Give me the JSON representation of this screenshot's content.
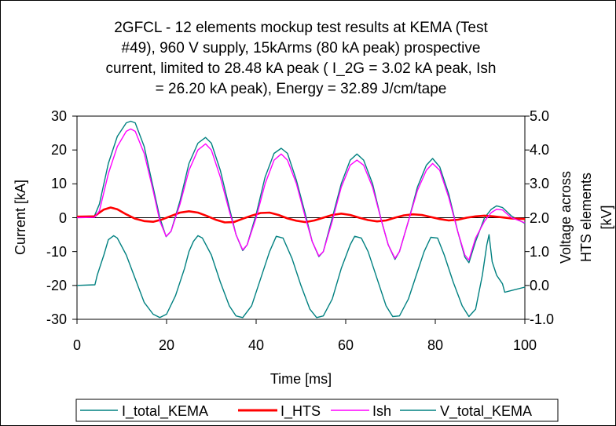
{
  "chart_data": {
    "type": "line",
    "title_lines": [
      "2GFCL - 12 elements mockup test results at KEMA (Test",
      "#49), 960 V supply, 15kArms (80 kA peak) prospective",
      "current, limited to 28.48 kA peak ( I_2G = 3.02 kA peak, Ish",
      "= 26.20 kA peak), Energy = 32.89 J/cm/tape"
    ],
    "xlabel": "Time [ms]",
    "ylabel": "Current [kA]",
    "y2label_lines": [
      "Voltage across",
      "HTS elements",
      "[kV]"
    ],
    "xlim": [
      0,
      100
    ],
    "ylim": [
      -30,
      30
    ],
    "y2lim": [
      -1.0,
      5.0
    ],
    "x_ticks": [
      "0",
      "20",
      "40",
      "60",
      "80",
      "100"
    ],
    "y_ticks": [
      "30",
      "20",
      "10",
      "0",
      "-10",
      "-20",
      "-30"
    ],
    "y2_ticks": [
      "5.0",
      "4.0",
      "3.0",
      "2.0",
      "1.0",
      "0.0",
      "-1.0"
    ],
    "grid": false,
    "legend_position": "bottom",
    "series": [
      {
        "name": "I_total_KEMA",
        "color": "#008080",
        "axis": "left",
        "points": [
          [
            0,
            0.3
          ],
          [
            3.9,
            0.5
          ],
          [
            5,
            4
          ],
          [
            7,
            16
          ],
          [
            9,
            24
          ],
          [
            11,
            28
          ],
          [
            12,
            28.5
          ],
          [
            13,
            28
          ],
          [
            15,
            21
          ],
          [
            17,
            9
          ],
          [
            18.5,
            0
          ],
          [
            19.9,
            -5.6
          ],
          [
            21,
            -4
          ],
          [
            23,
            5
          ],
          [
            25,
            16
          ],
          [
            27,
            22
          ],
          [
            28.7,
            23.7
          ],
          [
            30,
            22
          ],
          [
            32,
            14
          ],
          [
            34,
            3
          ],
          [
            35.5,
            -5
          ],
          [
            37,
            -9.7
          ],
          [
            38,
            -8
          ],
          [
            40,
            1
          ],
          [
            42,
            12
          ],
          [
            44,
            19
          ],
          [
            45.6,
            20.5
          ],
          [
            47,
            19
          ],
          [
            49,
            11
          ],
          [
            51,
            1
          ],
          [
            52.5,
            -7
          ],
          [
            54,
            -11.5
          ],
          [
            55,
            -10
          ],
          [
            57,
            0
          ],
          [
            59,
            10
          ],
          [
            61,
            17
          ],
          [
            62.5,
            18.8
          ],
          [
            64,
            17
          ],
          [
            66,
            10
          ],
          [
            68,
            -1
          ],
          [
            69.5,
            -8
          ],
          [
            71,
            -12.3
          ],
          [
            72,
            -10
          ],
          [
            74,
            -1
          ],
          [
            76,
            9
          ],
          [
            78,
            15.5
          ],
          [
            79.4,
            17.5
          ],
          [
            81,
            15
          ],
          [
            83,
            7
          ],
          [
            85,
            -4
          ],
          [
            86.6,
            -11.6
          ],
          [
            87.5,
            -13.3
          ],
          [
            89,
            -7
          ],
          [
            91,
            0
          ],
          [
            92.5,
            2.5
          ],
          [
            93.7,
            3.5
          ],
          [
            95,
            3
          ],
          [
            97,
            0.5
          ],
          [
            100,
            -1.7
          ]
        ]
      },
      {
        "name": "I_HTS",
        "color": "#ff0000",
        "axis": "left",
        "points": [
          [
            0,
            0.3
          ],
          [
            3.9,
            0.4
          ],
          [
            5,
            1.5
          ],
          [
            6,
            2.4
          ],
          [
            7.5,
            3
          ],
          [
            9,
            2.5
          ],
          [
            11,
            1
          ],
          [
            13,
            -0.3
          ],
          [
            15,
            -1
          ],
          [
            17,
            -1.2
          ],
          [
            19,
            -0.5
          ],
          [
            21,
            0.5
          ],
          [
            23,
            1.5
          ],
          [
            25,
            1.9
          ],
          [
            27,
            1.5
          ],
          [
            29,
            0.5
          ],
          [
            31,
            -0.6
          ],
          [
            33,
            -1.4
          ],
          [
            35,
            -1.3
          ],
          [
            37,
            -0.3
          ],
          [
            39,
            0.6
          ],
          [
            41,
            1.4
          ],
          [
            43,
            1.5
          ],
          [
            45,
            0.8
          ],
          [
            47,
            -0.2
          ],
          [
            49,
            -0.9
          ],
          [
            51,
            -1.3
          ],
          [
            53,
            -0.8
          ],
          [
            55,
            0
          ],
          [
            57,
            0.8
          ],
          [
            59,
            1.2
          ],
          [
            61,
            0.8
          ],
          [
            63,
            0
          ],
          [
            65,
            -0.7
          ],
          [
            67,
            -1.1
          ],
          [
            69,
            -0.8
          ],
          [
            71,
            0
          ],
          [
            73,
            0.7
          ],
          [
            75,
            1
          ],
          [
            77,
            0.8
          ],
          [
            79,
            0.2
          ],
          [
            81,
            -0.4
          ],
          [
            83,
            -0.8
          ],
          [
            85,
            -0.6
          ],
          [
            87,
            0
          ],
          [
            89,
            0.4
          ],
          [
            91,
            0.6
          ],
          [
            93,
            0.4
          ],
          [
            95,
            0.1
          ],
          [
            97,
            -0.2
          ],
          [
            100,
            -0.4
          ]
        ]
      },
      {
        "name": "Ish",
        "color": "#ff00ff",
        "axis": "left",
        "points": [
          [
            0,
            0
          ],
          [
            3.9,
            0.1
          ],
          [
            5,
            2
          ],
          [
            7,
            13
          ],
          [
            9,
            21
          ],
          [
            11,
            25.5
          ],
          [
            12,
            26.2
          ],
          [
            13,
            25.5
          ],
          [
            15,
            19
          ],
          [
            17,
            8
          ],
          [
            18.5,
            -1
          ],
          [
            19.9,
            -5.5
          ],
          [
            21,
            -4
          ],
          [
            23,
            4
          ],
          [
            25,
            14
          ],
          [
            27,
            20
          ],
          [
            28.7,
            21.8
          ],
          [
            30,
            20
          ],
          [
            32,
            12
          ],
          [
            34,
            2
          ],
          [
            35.5,
            -5
          ],
          [
            37,
            -9.5
          ],
          [
            38,
            -8
          ],
          [
            40,
            0
          ],
          [
            42,
            10
          ],
          [
            44,
            17
          ],
          [
            45.6,
            18.8
          ],
          [
            47,
            17
          ],
          [
            49,
            10
          ],
          [
            51,
            0
          ],
          [
            52.5,
            -7
          ],
          [
            54,
            -11.3
          ],
          [
            55,
            -10
          ],
          [
            57,
            -1
          ],
          [
            59,
            9
          ],
          [
            61,
            15.5
          ],
          [
            62.5,
            17
          ],
          [
            64,
            15.5
          ],
          [
            66,
            9
          ],
          [
            68,
            -1
          ],
          [
            69.5,
            -8
          ],
          [
            71,
            -12
          ],
          [
            72,
            -10
          ],
          [
            74,
            -1
          ],
          [
            76,
            8
          ],
          [
            78,
            14
          ],
          [
            79.4,
            16
          ],
          [
            81,
            14
          ],
          [
            83,
            6
          ],
          [
            85,
            -4
          ],
          [
            86.6,
            -11
          ],
          [
            87.5,
            -12.5
          ],
          [
            89,
            -6
          ],
          [
            91,
            -1
          ],
          [
            92.5,
            1.5
          ],
          [
            93.7,
            2.5
          ],
          [
            95,
            2.3
          ],
          [
            97,
            0
          ],
          [
            100,
            -1.5
          ]
        ]
      },
      {
        "name": "V_total_KEMA",
        "color": "#008080",
        "axis": "right",
        "points": [
          [
            0,
            0
          ],
          [
            4,
            0.02
          ],
          [
            4.5,
            0.3
          ],
          [
            5,
            0.5
          ],
          [
            6,
            0.9
          ],
          [
            7,
            1.35
          ],
          [
            8.2,
            1.47
          ],
          [
            9,
            1.4
          ],
          [
            11,
            0.9
          ],
          [
            13,
            0.2
          ],
          [
            15,
            -0.5
          ],
          [
            17,
            -0.85
          ],
          [
            18.5,
            -0.95
          ],
          [
            20,
            -0.85
          ],
          [
            22,
            -0.3
          ],
          [
            24,
            0.5
          ],
          [
            25,
            1.0
          ],
          [
            26,
            1.3
          ],
          [
            27,
            1.47
          ],
          [
            28,
            1.4
          ],
          [
            30,
            0.9
          ],
          [
            32,
            0.1
          ],
          [
            34,
            -0.6
          ],
          [
            35.5,
            -0.9
          ],
          [
            37,
            -0.95
          ],
          [
            39,
            -0.6
          ],
          [
            41,
            0.2
          ],
          [
            43,
            1.0
          ],
          [
            44.5,
            1.45
          ],
          [
            46,
            1.4
          ],
          [
            48,
            0.8
          ],
          [
            50,
            0
          ],
          [
            52,
            -0.7
          ],
          [
            53.5,
            -0.95
          ],
          [
            55,
            -0.9
          ],
          [
            57,
            -0.4
          ],
          [
            59,
            0.5
          ],
          [
            61,
            1.2
          ],
          [
            62,
            1.45
          ],
          [
            63.5,
            1.4
          ],
          [
            65,
            1.0
          ],
          [
            67,
            0.2
          ],
          [
            69,
            -0.6
          ],
          [
            70.5,
            -0.92
          ],
          [
            72,
            -0.9
          ],
          [
            74,
            -0.4
          ],
          [
            76,
            0.4
          ],
          [
            77.5,
            1.0
          ],
          [
            79,
            1.42
          ],
          [
            80.5,
            1.4
          ],
          [
            82,
            0.9
          ],
          [
            84,
            0.1
          ],
          [
            86,
            -0.6
          ],
          [
            87.5,
            -0.92
          ],
          [
            89,
            -0.7
          ],
          [
            90.5,
            0.3
          ],
          [
            91.5,
            1.2
          ],
          [
            92,
            1.5
          ],
          [
            92.7,
            0.7
          ],
          [
            93.7,
            0.3
          ],
          [
            95,
            0.05
          ],
          [
            95.5,
            -0.2
          ],
          [
            97,
            -0.15
          ],
          [
            100,
            -0.05
          ]
        ]
      }
    ]
  }
}
